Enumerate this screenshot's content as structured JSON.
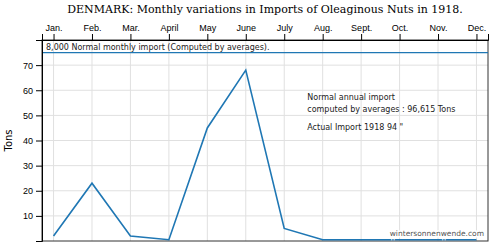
{
  "chart_data": {
    "type": "line",
    "title": "DENMARK: Monthly variations in Imports of Oleaginous Nuts in 1918.",
    "ylabel": "Tons",
    "categories": [
      "Jan.",
      "Feb.",
      "Mar.",
      "April",
      "May",
      "June",
      "July",
      "Aug.",
      "Sept.",
      "Oct.",
      "Nov.",
      "Dec."
    ],
    "values": [
      2,
      23,
      2,
      0.5,
      45,
      68,
      5,
      0.5,
      0.5,
      0.5,
      0.5,
      0.5
    ],
    "ylim": [
      0,
      80
    ],
    "yticks": [
      10,
      20,
      30,
      40,
      50,
      60,
      70
    ],
    "grid": true,
    "reference_line": {
      "value": 75,
      "label": "8,000  Normal monthly import (Computed by averages)."
    },
    "annotations": [
      "Normal annual import",
      "computed by averages : 96,615 Tons",
      "Actual Import  1918        94  \""
    ],
    "watermark": "wintersonnenwende.com"
  }
}
